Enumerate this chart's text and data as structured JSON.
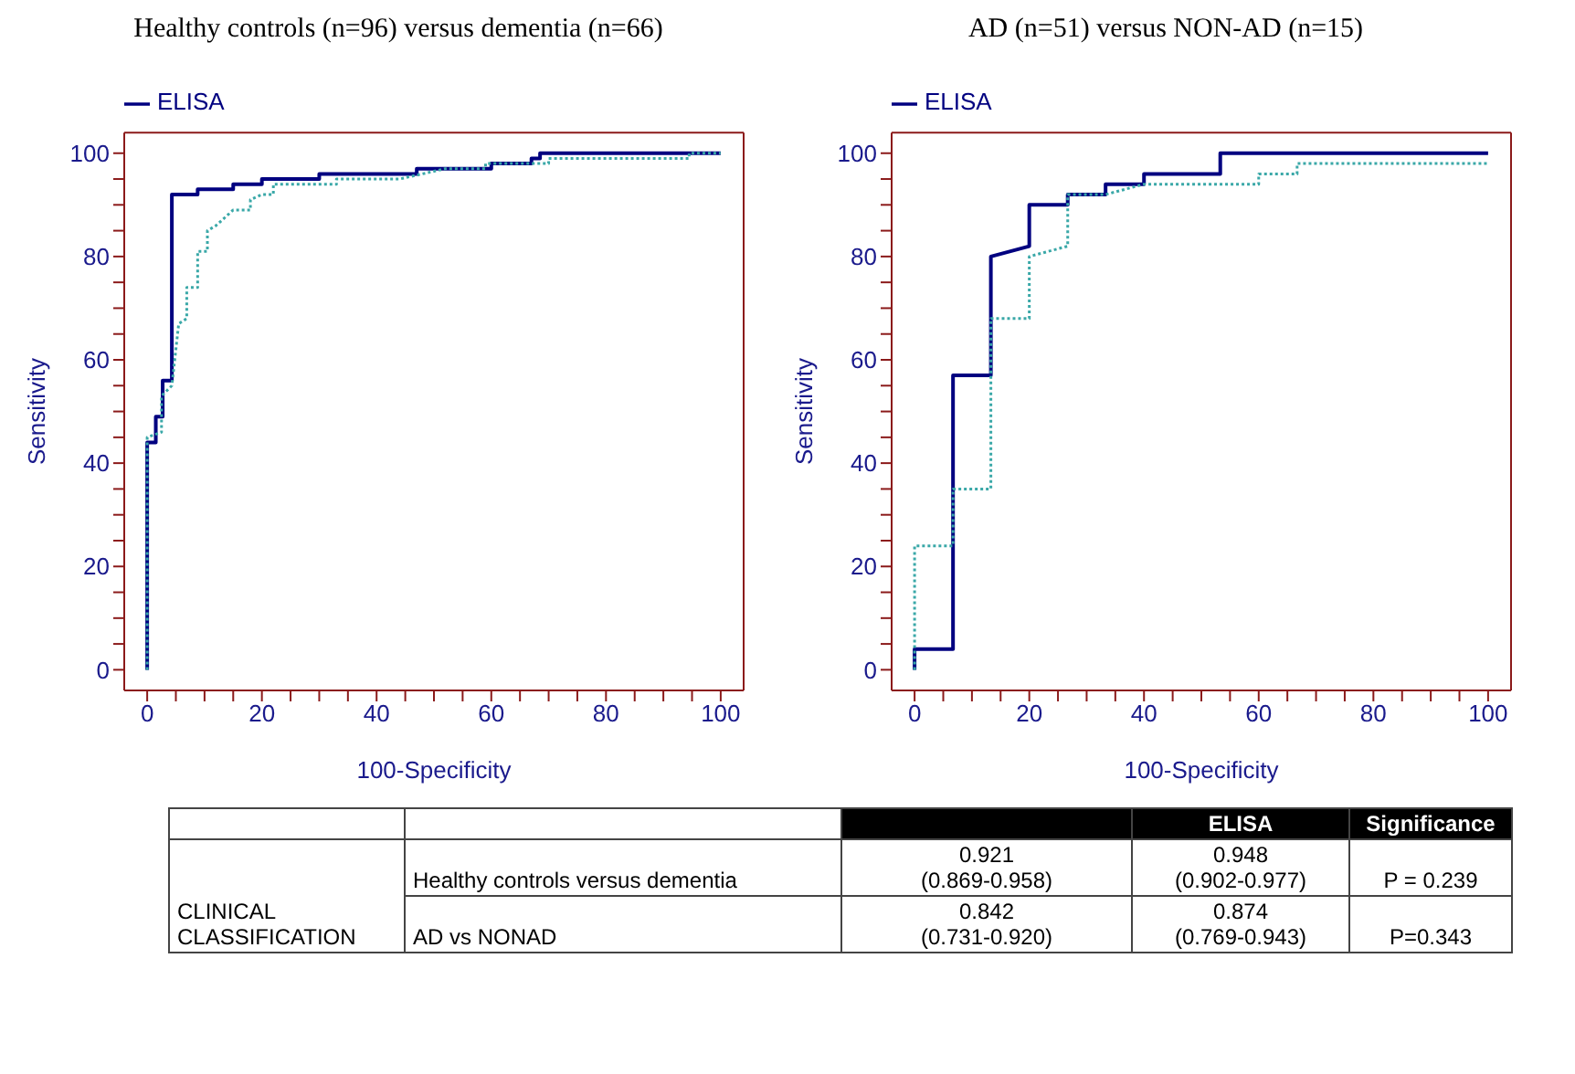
{
  "chart_data": [
    {
      "type": "line",
      "title": "Healthy controls (n=96) versus dementia (n=66)",
      "xlabel": "100-Specificity",
      "ylabel": "Sensitivity",
      "xlim": [
        -4,
        104
      ],
      "ylim": [
        -4,
        104
      ],
      "xticks": [
        0,
        {
          "value": 5,
          "label": null
        },
        {
          "value": 10,
          "label": null
        },
        {
          "value": 15,
          "label": null
        },
        20,
        {
          "value": 25,
          "label": null
        },
        {
          "value": 30,
          "label": null
        },
        {
          "value": 35,
          "label": null
        },
        40,
        {
          "value": 45,
          "label": null
        },
        {
          "value": 50,
          "label": null
        },
        {
          "value": 55,
          "label": null
        },
        60,
        {
          "value": 65,
          "label": null
        },
        {
          "value": 70,
          "label": null
        },
        {
          "value": 75,
          "label": null
        },
        80,
        {
          "value": 85,
          "label": null
        },
        {
          "value": 90,
          "label": null
        },
        {
          "value": 95,
          "label": null
        },
        100
      ],
      "yticks": [
        0,
        {
          "value": 5,
          "label": null
        },
        {
          "value": 10,
          "label": null
        },
        {
          "value": 15,
          "label": null
        },
        20,
        {
          "value": 25,
          "label": null
        },
        {
          "value": 30,
          "label": null
        },
        {
          "value": 35,
          "label": null
        },
        40,
        {
          "value": 45,
          "label": null
        },
        {
          "value": 50,
          "label": null
        },
        {
          "value": 55,
          "label": null
        },
        60,
        {
          "value": 65,
          "label": null
        },
        {
          "value": 70,
          "label": null
        },
        {
          "value": 75,
          "label": null
        },
        80,
        {
          "value": 85,
          "label": null
        },
        {
          "value": 90,
          "label": null
        },
        {
          "value": 95,
          "label": null
        },
        100
      ],
      "legend": "top left",
      "series": [
        {
          "name": "ELISA",
          "color": "#000080",
          "line_style": "solid",
          "x": [
            0,
            0,
            1.5,
            1.5,
            2.7,
            2.7,
            4.3,
            4.3,
            8.8,
            8.8,
            15,
            15,
            20,
            20,
            30,
            30,
            47,
            47,
            60,
            60,
            67,
            67,
            68.5,
            68.5,
            100
          ],
          "values": [
            0,
            44,
            44,
            49,
            49,
            56,
            56,
            92,
            92,
            93,
            93,
            94,
            94,
            95,
            95,
            96,
            96,
            97,
            97,
            98,
            98,
            99,
            99,
            100,
            100
          ]
        },
        {
          "color": "#3aa8a8",
          "line_style": "dotted",
          "x": [
            0,
            0,
            2.5,
            2.5,
            4.3,
            5.5,
            6.9,
            6.9,
            8.8,
            8.8,
            10.5,
            10.5,
            12,
            14,
            15,
            18,
            18,
            20,
            22,
            22,
            33,
            33,
            44,
            48,
            52,
            59,
            59,
            70,
            70,
            94.5,
            94.5,
            100
          ],
          "values": [
            0,
            45,
            46,
            53,
            55,
            67,
            68,
            74,
            74,
            81,
            81,
            85,
            86,
            88,
            89,
            89,
            91,
            92,
            92,
            94,
            94,
            95,
            95,
            96,
            97,
            97,
            98,
            98,
            99,
            99,
            100,
            100
          ]
        }
      ]
    },
    {
      "type": "line",
      "title": "AD (n=51) versus NON-AD (n=15)",
      "xlabel": "100-Specificity",
      "ylabel": "Sensitivity",
      "xlim": [
        -4,
        104
      ],
      "ylim": [
        -4,
        104
      ],
      "xticks": [
        0,
        {
          "value": 5,
          "label": null
        },
        {
          "value": 10,
          "label": null
        },
        {
          "value": 15,
          "label": null
        },
        20,
        {
          "value": 25,
          "label": null
        },
        {
          "value": 30,
          "label": null
        },
        {
          "value": 35,
          "label": null
        },
        40,
        {
          "value": 45,
          "label": null
        },
        {
          "value": 50,
          "label": null
        },
        {
          "value": 55,
          "label": null
        },
        60,
        {
          "value": 65,
          "label": null
        },
        {
          "value": 70,
          "label": null
        },
        {
          "value": 75,
          "label": null
        },
        80,
        {
          "value": 85,
          "label": null
        },
        {
          "value": 90,
          "label": null
        },
        {
          "value": 95,
          "label": null
        },
        100
      ],
      "yticks": [
        0,
        {
          "value": 5,
          "label": null
        },
        {
          "value": 10,
          "label": null
        },
        {
          "value": 15,
          "label": null
        },
        20,
        {
          "value": 25,
          "label": null
        },
        {
          "value": 30,
          "label": null
        },
        {
          "value": 35,
          "label": null
        },
        40,
        {
          "value": 45,
          "label": null
        },
        {
          "value": 50,
          "label": null
        },
        {
          "value": 55,
          "label": null
        },
        60,
        {
          "value": 65,
          "label": null
        },
        {
          "value": 70,
          "label": null
        },
        {
          "value": 75,
          "label": null
        },
        80,
        {
          "value": 85,
          "label": null
        },
        {
          "value": 90,
          "label": null
        },
        {
          "value": 95,
          "label": null
        },
        100
      ],
      "legend": "top left",
      "series": [
        {
          "name": "ELISA",
          "color": "#000080",
          "line_style": "solid",
          "x": [
            0,
            0,
            6.7,
            6.7,
            13.3,
            13.3,
            20,
            20,
            26.7,
            26.7,
            33.3,
            33.3,
            40,
            40,
            53.3,
            53.3,
            100
          ],
          "values": [
            0,
            4,
            4,
            57,
            57,
            80,
            82,
            90,
            90,
            92,
            92,
            94,
            94,
            96,
            96,
            100,
            100
          ]
        },
        {
          "color": "#3aa8a8",
          "line_style": "dotted",
          "x": [
            0,
            0,
            6.7,
            6.7,
            13.3,
            13.3,
            20,
            20,
            26.7,
            26.7,
            33.3,
            40,
            60,
            60,
            66.7,
            66.7,
            100
          ],
          "values": [
            0,
            24,
            24,
            35,
            35,
            68,
            68,
            80,
            82,
            92,
            92,
            94,
            94,
            96,
            96,
            98,
            98
          ]
        }
      ]
    },
    {
      "type": "other",
      "annotations": [
        "CLINICAL CLASSIFICATION",
        "Healthy controls versus dementia",
        "AD vs NONAD",
        "ELISA",
        "Significance",
        "0.921",
        "(0.869-0.958)",
        "0.948",
        "(0.902-0.977)",
        "P = 0.239",
        "0.842",
        "(0.731-0.920)",
        "0.874",
        "(0.769-0.943)",
        "P=0.343"
      ]
    }
  ]
}
